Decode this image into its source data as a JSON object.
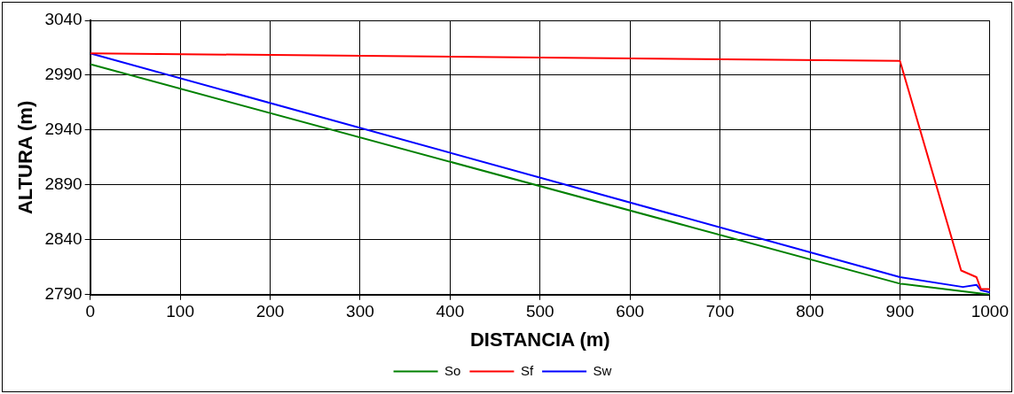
{
  "chart_data": {
    "type": "line",
    "xlabel": "DISTANCIA (m)",
    "ylabel": "ALTURA (m)",
    "xlim": [
      0,
      1000
    ],
    "xticks": [
      0,
      100,
      200,
      300,
      400,
      500,
      600,
      700,
      800,
      900,
      1000
    ],
    "ylim": [
      2790,
      3040
    ],
    "yticks": [
      2790,
      2840,
      2890,
      2940,
      2990,
      3040
    ],
    "grid": true,
    "legend": "bottom",
    "marker": "none",
    "line_style": "solid",
    "series": [
      {
        "name": "So",
        "color": "#008000",
        "x": [
          0,
          900,
          1000
        ],
        "values": [
          3000,
          2800,
          2790
        ]
      },
      {
        "name": "Sf",
        "color": "#ff0000",
        "x": [
          0,
          900,
          968,
          985,
          990,
          1000
        ],
        "values": [
          3010,
          3003,
          2812,
          2806,
          2795,
          2795
        ]
      },
      {
        "name": "Sw",
        "color": "#0000ff",
        "x": [
          0,
          900,
          970,
          985,
          990,
          1000
        ],
        "values": [
          3010,
          2806,
          2797,
          2799,
          2794,
          2792
        ]
      }
    ]
  }
}
